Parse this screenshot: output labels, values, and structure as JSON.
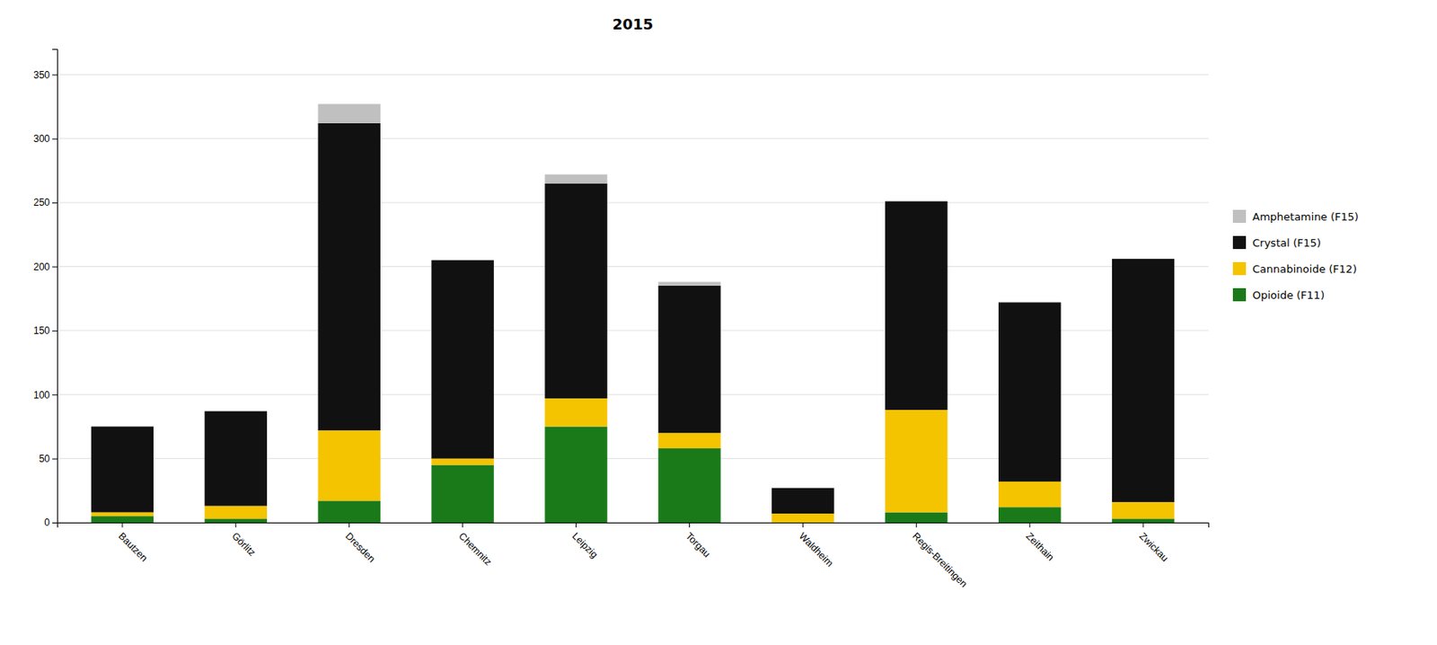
{
  "chart_data": {
    "type": "bar",
    "title": "2015",
    "categories": [
      "Bautzen",
      "Görlitz",
      "Dresden",
      "Chemnitz",
      "Leipzig",
      "Torgau",
      "Waldheim",
      "Regis-Breitingen",
      "Zeithain",
      "Zwickau"
    ],
    "series": [
      {
        "name": "Opioide (F11)",
        "color": "#1a7a1a",
        "values": [
          5,
          3,
          17,
          45,
          75,
          58,
          0,
          8,
          12,
          3
        ]
      },
      {
        "name": "Cannabinoide (F12)",
        "color": "#f5c400",
        "values": [
          3,
          10,
          55,
          5,
          22,
          12,
          7,
          80,
          20,
          13
        ]
      },
      {
        "name": "Crystal (F15)",
        "color": "#111111",
        "values": [
          67,
          74,
          240,
          155,
          168,
          115,
          20,
          163,
          140,
          190
        ]
      },
      {
        "name": "Amphetamine (F15)",
        "color": "#c0c0c0",
        "values": [
          0,
          0,
          15,
          0,
          7,
          3,
          0,
          0,
          0,
          0
        ]
      }
    ],
    "stacked": true,
    "ylim": [
      0,
      370
    ],
    "yticks": [
      0,
      50,
      100,
      150,
      200,
      250,
      300,
      350
    ],
    "grid": true,
    "legend": "right"
  }
}
